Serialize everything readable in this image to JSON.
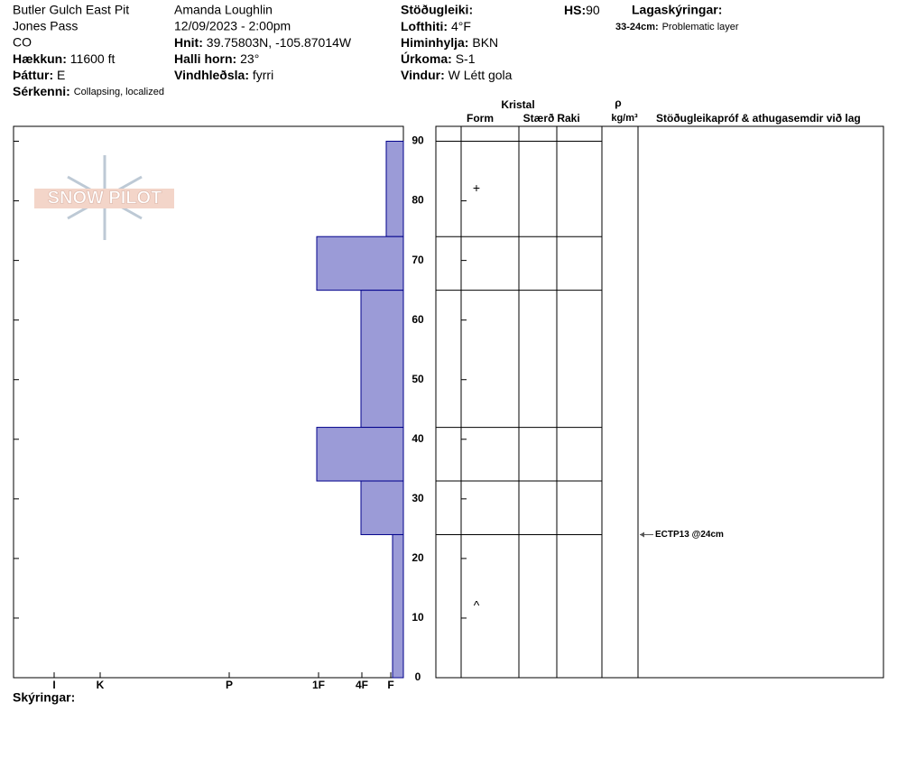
{
  "header": {
    "site": "Butler Gulch East Pit",
    "area": "Jones Pass",
    "state": "CO",
    "elevation": {
      "label": "Hækkun:",
      "value": "11600 ft"
    },
    "aspect": {
      "label": "Þáttur:",
      "value": "E"
    },
    "features": {
      "label": "Sérkenni:",
      "value": "Collapsing, localized"
    },
    "observer": "Amanda Loughlin",
    "datetime": "12/09/2023 - 2:00pm",
    "coords": {
      "label": "Hnit:",
      "value": "39.75803N, -105.87014W"
    },
    "slope": {
      "label": "Halli horn:",
      "value": "23°"
    },
    "wind_loading": {
      "label": "Vindhleðsla:",
      "value": "fyrri"
    },
    "stability": {
      "label": "Stöðugleiki:"
    },
    "air_temp": {
      "label": "Lofthiti:",
      "value": "4°F"
    },
    "sky": {
      "label": "Himinhylja:",
      "value": "BKN"
    },
    "precip": {
      "label": "Úrkoma:",
      "value": "S-1"
    },
    "wind": {
      "label": "Vindur:",
      "value": "W Létt gola"
    },
    "hs": {
      "label": "HS:",
      "value": "90"
    },
    "layer_notes": {
      "label": "Lagaskýringar:",
      "items": [
        {
          "range": "33-24cm:",
          "text": "Problematic layer"
        }
      ]
    },
    "logo": "SNOW PILOT"
  },
  "chart_data": {
    "type": "snow-profile",
    "ylim": [
      0,
      92.5
    ],
    "yticks": [
      0,
      10,
      20,
      30,
      40,
      50,
      60,
      70,
      80,
      90
    ],
    "xlim": [
      432,
      0
    ],
    "xticks": [
      {
        "value": 387,
        "label": "I"
      },
      {
        "value": 336,
        "label": "K"
      },
      {
        "value": 193,
        "label": "P"
      },
      {
        "value": 94,
        "label": "1F"
      },
      {
        "value": 46,
        "label": "4F"
      },
      {
        "value": 14,
        "label": "F"
      }
    ],
    "color": "#9b9bd7",
    "layers": {
      "top": [
        90,
        74,
        65,
        42,
        33,
        24
      ],
      "bottom": [
        74,
        65,
        42,
        33,
        24,
        0
      ],
      "hardness": [
        19,
        96,
        47,
        96,
        47,
        12
      ]
    },
    "grain_forms": [
      {
        "depth": 82,
        "symbol": "+"
      },
      {
        "depth": 12,
        "symbol": "^"
      }
    ],
    "tests": [
      {
        "depth": 24,
        "label": "ECTP13 @24cm"
      }
    ],
    "columns": {
      "crystal": "Kristal",
      "form": "Form",
      "size": "Stærð",
      "moisture": "Raki",
      "rho": "ρ",
      "density_unit": "kg/m³",
      "comments": "Stöðugleikapróf & athugasemdir við lag"
    },
    "footer": "Skýringar:"
  }
}
